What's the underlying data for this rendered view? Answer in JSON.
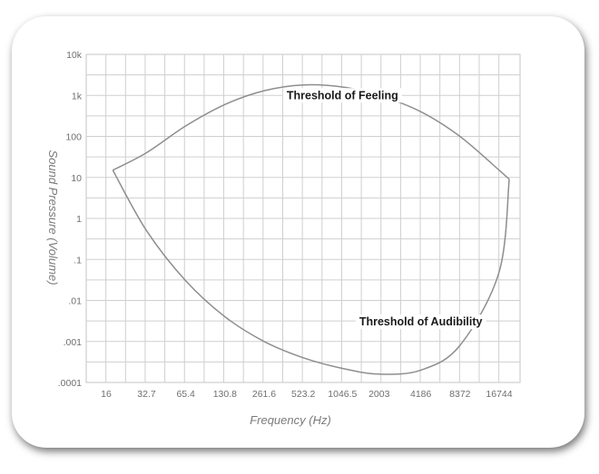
{
  "chart_data": {
    "type": "line",
    "xlabel": "Frequency (Hz)",
    "ylabel": "Sound Pressure (Volume)",
    "x_ticks": [
      "16",
      "32.7",
      "65.4",
      "130.8",
      "261.6",
      "523.2",
      "1046.5",
      "2003",
      "4186",
      "8372",
      "16744"
    ],
    "y_ticks": [
      "10k",
      "1k",
      "100",
      "10",
      "1",
      ".1",
      ".01",
      ".001",
      ".0001"
    ],
    "y_scale": "log",
    "ylim": [
      0.0001,
      10000
    ],
    "grid": true,
    "series": [
      {
        "name": "Threshold of Feeling",
        "points": [
          {
            "x": 18,
            "y": 15
          },
          {
            "x": 32.7,
            "y": 40
          },
          {
            "x": 65.4,
            "y": 180
          },
          {
            "x": 130.8,
            "y": 600
          },
          {
            "x": 261.6,
            "y": 1300
          },
          {
            "x": 523.2,
            "y": 1800
          },
          {
            "x": 1046.5,
            "y": 1600
          },
          {
            "x": 2003,
            "y": 1000
          },
          {
            "x": 4186,
            "y": 400
          },
          {
            "x": 8372,
            "y": 100
          },
          {
            "x": 16744,
            "y": 15
          },
          {
            "x": 20000,
            "y": 9
          }
        ]
      },
      {
        "name": "Threshold of Audibility",
        "points": [
          {
            "x": 18,
            "y": 15
          },
          {
            "x": 32.7,
            "y": 0.5
          },
          {
            "x": 65.4,
            "y": 0.03
          },
          {
            "x": 130.8,
            "y": 0.004
          },
          {
            "x": 261.6,
            "y": 0.001
          },
          {
            "x": 523.2,
            "y": 0.0004
          },
          {
            "x": 1046.5,
            "y": 0.00022
          },
          {
            "x": 2003,
            "y": 0.00016
          },
          {
            "x": 4186,
            "y": 0.0002
          },
          {
            "x": 8372,
            "y": 0.0008
          },
          {
            "x": 16744,
            "y": 0.05
          },
          {
            "x": 20000,
            "y": 9
          }
        ]
      }
    ],
    "annotations": [
      {
        "text": "Threshold of Feeling",
        "x": 1046.5,
        "y": 1000
      },
      {
        "text": "Threshold of Audibility",
        "x": 4186,
        "y": 0.003
      }
    ],
    "colors": {
      "grid": "#cfcfcf",
      "curve": "#8e8e8e",
      "text": "#6f6f6f"
    }
  }
}
